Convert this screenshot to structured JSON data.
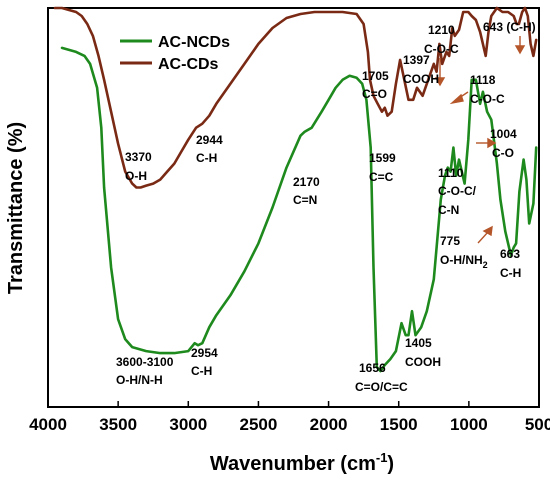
{
  "chart_data": {
    "type": "line",
    "xlabel": "Wavenumber (cm",
    "xlabel_sup": "-1",
    "xlabel_suffix": ")",
    "ylabel": "Transmittance (%)",
    "xlim": [
      4000,
      500
    ],
    "x_reversed": true,
    "xticks": [
      4000,
      3500,
      3000,
      2500,
      2000,
      1500,
      1000,
      500
    ],
    "grid": false,
    "legend_position": "top-left",
    "series": [
      {
        "name": "AC-NCDs",
        "color": "#1e8a1e",
        "x": [
          3900,
          3800,
          3740,
          3700,
          3650,
          3620,
          3600,
          3550,
          3500,
          3450,
          3400,
          3300,
          3200,
          3100,
          3000,
          2954,
          2930,
          2900,
          2850,
          2800,
          2700,
          2600,
          2500,
          2400,
          2300,
          2200,
          2170,
          2120,
          2050,
          2000,
          1950,
          1900,
          1850,
          1800,
          1760,
          1730,
          1700,
          1680,
          1656,
          1630,
          1600,
          1560,
          1520,
          1480,
          1450,
          1430,
          1405,
          1380,
          1340,
          1300,
          1250,
          1200,
          1170,
          1150,
          1130,
          1110,
          1090,
          1070,
          1050,
          1030,
          1004,
          980,
          950,
          920,
          900,
          870,
          840,
          800,
          775,
          740,
          700,
          680,
          663,
          640,
          610,
          590,
          570,
          540,
          520
        ],
        "y": [
          90,
          89,
          88,
          86,
          80,
          70,
          55,
          35,
          22,
          17,
          15,
          14,
          13.5,
          13.5,
          14,
          16,
          15.5,
          16,
          20,
          23,
          28,
          34,
          41,
          50,
          60,
          68,
          69,
          70,
          74,
          77,
          80,
          82,
          83,
          82.5,
          81,
          77,
          65,
          35,
          10,
          9,
          10.5,
          12,
          14,
          21,
          18,
          18,
          24,
          18,
          20,
          24,
          32,
          52,
          58,
          60,
          59,
          65,
          58,
          62,
          59,
          56,
          67,
          82,
          82,
          76,
          79,
          74,
          72,
          61,
          52,
          44,
          38,
          40,
          41,
          54,
          62,
          57,
          46,
          51,
          65
        ]
      },
      {
        "name": "AC-CDs",
        "color": "#7a2a14",
        "x": [
          3950,
          3900,
          3850,
          3800,
          3760,
          3720,
          3680,
          3640,
          3600,
          3550,
          3500,
          3450,
          3400,
          3370,
          3340,
          3300,
          3250,
          3200,
          3150,
          3100,
          3050,
          3000,
          2944,
          2900,
          2850,
          2800,
          2700,
          2600,
          2500,
          2400,
          2300,
          2200,
          2100,
          2000,
          1900,
          1800,
          1750,
          1720,
          1705,
          1680,
          1650,
          1620,
          1599,
          1580,
          1550,
          1520,
          1490,
          1460,
          1430,
          1397,
          1370,
          1330,
          1290,
          1250,
          1230,
          1210,
          1190,
          1160,
          1140,
          1118,
          1100,
          1070,
          1040,
          1004,
          980,
          950,
          920,
          900,
          880,
          860,
          840,
          800,
          760,
          720,
          680,
          660,
          643,
          620,
          600,
          580,
          560,
          540,
          520
        ],
        "y": [
          100,
          100,
          99.5,
          99,
          98,
          96,
          93,
          88,
          82,
          74,
          66,
          59,
          56,
          55,
          55,
          55.5,
          56,
          57,
          59,
          61,
          64,
          67,
          70,
          71,
          73,
          76,
          81,
          86,
          91,
          95,
          97.5,
          98.5,
          99,
          99,
          99,
          98.5,
          96,
          89,
          82,
          78,
          76,
          74,
          75,
          73,
          74,
          81,
          87,
          82,
          77,
          77,
          80,
          78,
          82,
          86,
          84,
          91,
          86,
          89,
          88,
          95,
          93,
          94.5,
          99,
          99,
          98,
          97,
          94,
          91,
          88,
          94,
          98,
          100,
          99,
          99,
          98,
          96,
          96,
          99,
          100,
          98,
          91,
          88,
          92
        ]
      }
    ],
    "annotations": {
      "ncds": {
        "a1": {
          "value": "3600-3100",
          "group": "O-H/N-H"
        },
        "a2": {
          "value": "2954",
          "group": "C-H"
        },
        "a3": {
          "value": "2170",
          "group": "C=N"
        },
        "a4": {
          "value": "1656",
          "group": "C=O/C=C"
        },
        "a5": {
          "value": "1405",
          "group": "COOH"
        },
        "a6": {
          "value": "1110",
          "group": "C-O-C/",
          "group2": "C-N"
        },
        "a7": {
          "value": "1004",
          "group": "C-O"
        },
        "a8": {
          "value": "775",
          "group": "O-H/NH",
          "group_sub": "2"
        },
        "a9": {
          "value": "663",
          "group": "C-H"
        }
      },
      "cds": {
        "b1": {
          "value": "3370",
          "group": "O-H"
        },
        "b2": {
          "value": "2944",
          "group": "C-H"
        },
        "b3": {
          "value": "1705",
          "group": "C=O"
        },
        "b4": {
          "value": "1599",
          "group": "C=C"
        },
        "b5": {
          "value": "1397",
          "group": "COOH"
        },
        "b6": {
          "value": "1210",
          "group": "C-O-C"
        },
        "b7": {
          "value": "1118",
          "group": "C-O-C"
        },
        "b8": {
          "value": "643 (C-H)"
        }
      }
    }
  }
}
